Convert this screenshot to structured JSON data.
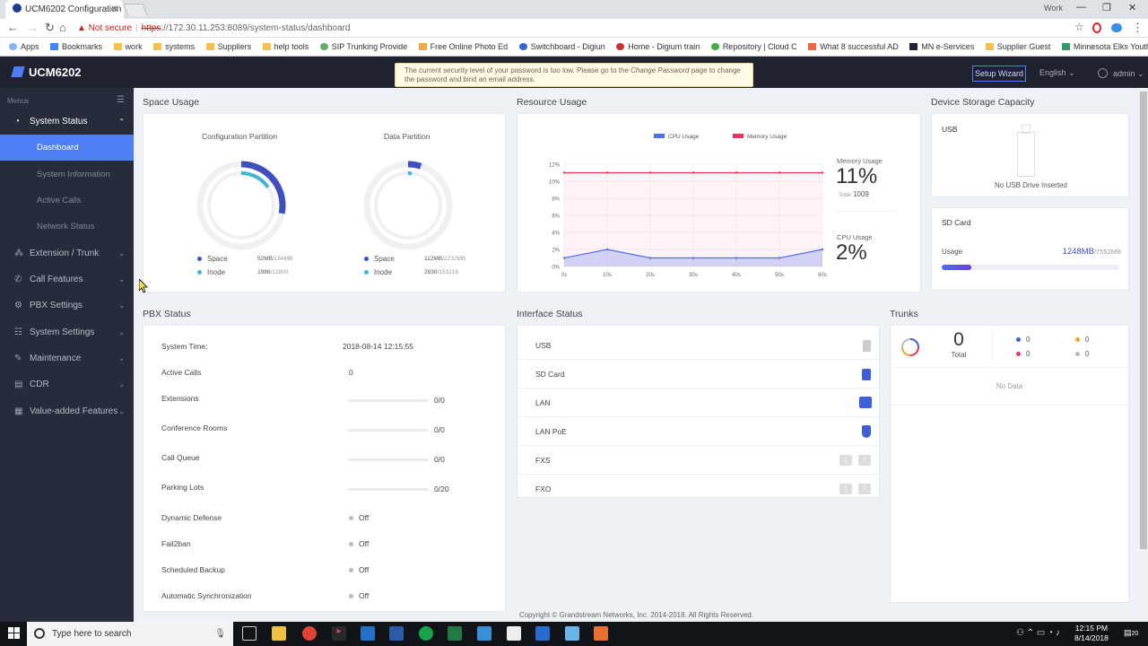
{
  "browser": {
    "tab_title": "UCM6202 Configuration",
    "profile": "Work",
    "security": "Not secure",
    "url_scheme": "https",
    "url_rest": "://172.30.11.253:8089/system-status/dashboard",
    "bookmarks": [
      "Apps",
      "Bookmarks",
      "work",
      "systems",
      "Suppliers",
      "help tools",
      "SIP Trunking Provide",
      "Free Online Photo Ed",
      "Switchboard - Digiun",
      "Home - Digium train",
      "Repository | Cloud C",
      "What 8 successful AD",
      "MN e-Services",
      "Supplier Guest",
      "Minnesota Elks Youth"
    ]
  },
  "header": {
    "logo": "UCM6202",
    "notice_a": "The current security level of your password is too low. Please go to the ",
    "notice_link": "Change Password",
    "notice_b": " page to change",
    "notice_c": "the password and bind an email address.",
    "setup_wizard": "Setup Wizard",
    "language": "English",
    "user": "admin"
  },
  "sidebar": {
    "menus_label": "Menus",
    "system_status": "System Status",
    "subitems": [
      "Dashboard",
      "System Information",
      "Active Calls",
      "Network Status"
    ],
    "items": [
      "Extension / Trunk",
      "Call Features",
      "PBX Settings",
      "System Settings",
      "Maintenance",
      "CDR",
      "Value-added Features"
    ]
  },
  "space": {
    "title": "Space Usage",
    "config_title": "Configuration Partition",
    "data_title": "Data Partition",
    "space_label": "Space",
    "inode_label": "Inode",
    "config_space_used": "52MB",
    "config_space_total": "/184MB",
    "config_inode_used": "1986",
    "config_inode_total": "/12800",
    "data_space_used": "112MB",
    "data_space_total": "/2232MB",
    "data_inode_used": "2830",
    "data_inode_total": "/153216",
    "config_space_frac": 0.28,
    "config_inode_frac": 0.155,
    "data_space_frac": 0.05,
    "data_inode_frac": 0.018,
    "space_color": "#3f4fbf",
    "inode_color": "#3fb6d6"
  },
  "resource": {
    "title": "Resource Usage",
    "memory_label": "Memory Usage",
    "memory_value": "11%",
    "memory_total_label": "Total",
    "memory_total": "1009",
    "cpu_label": "CPU Usage",
    "cpu_value": "2%"
  },
  "chart_data": {
    "type": "line",
    "x": [
      "0s",
      "10s",
      "20s",
      "30s",
      "40s",
      "50s",
      "60s"
    ],
    "series": [
      {
        "name": "CPU Usage",
        "color": "#4f6ff0",
        "values": [
          1,
          2,
          1,
          1,
          1,
          1,
          2
        ]
      },
      {
        "name": "Memory Usage",
        "color": "#e9365e",
        "values": [
          11,
          11,
          11,
          11,
          11,
          11,
          11
        ]
      }
    ],
    "yticks": [
      "0%",
      "2%",
      "4%",
      "6%",
      "8%",
      "10%",
      "12%"
    ],
    "ylim": [
      0,
      12
    ],
    "legend": "top-center"
  },
  "storage": {
    "title": "Device Storage Capacity",
    "usb_title": "USB",
    "usb_msg": "No USB Drive Inserted",
    "sd_title": "SD Card",
    "sd_usage_label": "Usage",
    "sd_used": "1248MB",
    "sd_total": "/7552MB",
    "sd_frac": 0.165
  },
  "pbx": {
    "title": "PBX Status",
    "rows": [
      {
        "label": "System Time:",
        "value": "2018-08-14 12:15:55"
      },
      {
        "label": "Active Calls",
        "value": "0"
      },
      {
        "label": "Extensions",
        "value": "0/0"
      },
      {
        "label": "Conference Rooms",
        "value": "0/0"
      },
      {
        "label": "Call Queue",
        "value": "0/0"
      },
      {
        "label": "Parking Lots",
        "value": "0/20"
      },
      {
        "label": "Dynamic Defense",
        "value": "Off"
      },
      {
        "label": "Fail2ban",
        "value": "Off"
      },
      {
        "label": "Scheduled Backup",
        "value": "Off"
      },
      {
        "label": "Automatic Synchronization",
        "value": "Off"
      }
    ]
  },
  "interface": {
    "title": "Interface Status",
    "rows": [
      "USB",
      "SD Card",
      "LAN",
      "LAN PoE",
      "FXS",
      "FXO"
    ],
    "port1": "1",
    "port2": "2"
  },
  "trunks": {
    "title": "Trunks",
    "total": "0",
    "total_label": "Total",
    "counts": [
      "0",
      "0",
      "0",
      "0"
    ],
    "no_data": "No Data"
  },
  "footer": "Copyright © Grandstream Networks, Inc. 2014-2018. All Rights Reserved.",
  "taskbar": {
    "search_placeholder": "Type here to search",
    "time": "12:15 PM",
    "date": "8/14/2018",
    "notif_count": "20"
  }
}
